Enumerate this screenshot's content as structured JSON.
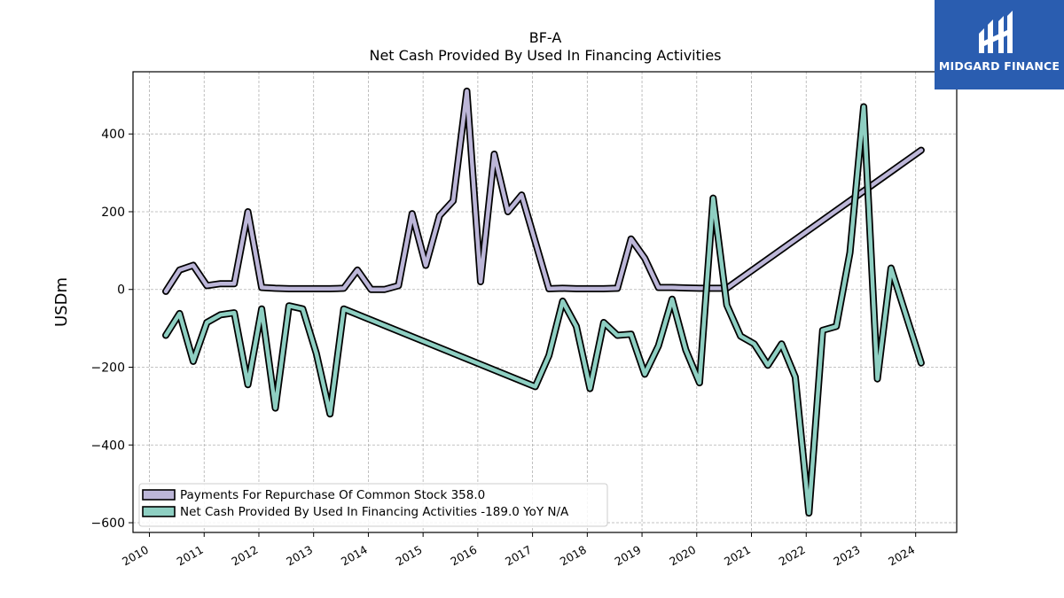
{
  "brand": {
    "name": "MIDGARD FINANCE",
    "color": "#2a5db0"
  },
  "chart_data": {
    "type": "line",
    "title": "BF-A",
    "subtitle": "Net Cash Provided By Used In Financing Activities",
    "xlabel": "",
    "ylabel": "USDm",
    "xlim": [
      2009.7,
      2024.75
    ],
    "ylim": [
      -625,
      560
    ],
    "yticks": [
      -600,
      -400,
      -200,
      0,
      200,
      400
    ],
    "ytick_labels": [
      "−600",
      "−400",
      "−200",
      "0",
      "200",
      "400"
    ],
    "xticks": [
      2010,
      2011,
      2012,
      2013,
      2014,
      2015,
      2016,
      2017,
      2018,
      2019,
      2020,
      2021,
      2022,
      2023,
      2024
    ],
    "xtick_labels": [
      "2010",
      "2011",
      "2012",
      "2013",
      "2014",
      "2015",
      "2016",
      "2017",
      "2018",
      "2019",
      "2020",
      "2021",
      "2022",
      "2023",
      "2024"
    ],
    "grid": true,
    "legend_position": "lower-left",
    "series": [
      {
        "name": "Payments For Repurchase Of Common Stock",
        "legend_label": "Payments For Repurchase Of Common Stock  358.0",
        "color": "#bcb6d8",
        "x": [
          2010.3,
          2010.55,
          2010.8,
          2011.05,
          2011.3,
          2011.55,
          2011.8,
          2012.05,
          2012.3,
          2012.55,
          2012.8,
          2013.05,
          2013.3,
          2013.55,
          2013.8,
          2014.05,
          2014.3,
          2014.55,
          2014.8,
          2015.05,
          2015.3,
          2015.55,
          2015.8,
          2016.05,
          2016.3,
          2016.55,
          2016.8,
          2017.3,
          2017.55,
          2017.8,
          2018.05,
          2018.3,
          2018.55,
          2018.8,
          2019.05,
          2019.3,
          2019.55,
          2019.8,
          2020.05,
          2020.3,
          2020.55,
          2024.1
        ],
        "y": [
          -5,
          50,
          62,
          10,
          15,
          15,
          200,
          5,
          3,
          2,
          2,
          2,
          2,
          3,
          50,
          0,
          0,
          10,
          195,
          62,
          190,
          228,
          510,
          20,
          348,
          200,
          243,
          2,
          3,
          2,
          2,
          2,
          3,
          130,
          80,
          5,
          5,
          4,
          3,
          3,
          3,
          358
        ]
      },
      {
        "name": "Net Cash Provided By Used In Financing Activities",
        "legend_label": "Net Cash Provided By Used In Financing Activities  -189.0 YoY N/A",
        "color": "#8ecfc2",
        "x": [
          2010.3,
          2010.55,
          2010.8,
          2011.05,
          2011.3,
          2011.55,
          2011.8,
          2012.05,
          2012.3,
          2012.55,
          2012.8,
          2013.05,
          2013.3,
          2013.55,
          2017.05,
          2017.3,
          2017.55,
          2017.8,
          2018.05,
          2018.3,
          2018.55,
          2018.8,
          2019.05,
          2019.3,
          2019.55,
          2019.8,
          2020.05,
          2020.3,
          2020.55,
          2020.8,
          2021.05,
          2021.3,
          2021.55,
          2021.8,
          2022.05,
          2022.3,
          2022.55,
          2022.8,
          2023.05,
          2023.3,
          2023.55,
          2024.1
        ],
        "y": [
          -118,
          -62,
          -185,
          -85,
          -65,
          -60,
          -245,
          -50,
          -305,
          -42,
          -50,
          -165,
          -320,
          -50,
          -250,
          -170,
          -30,
          -95,
          -255,
          -85,
          -118,
          -115,
          -218,
          -145,
          -25,
          -155,
          -240,
          235,
          -40,
          -120,
          -140,
          -195,
          -140,
          -225,
          -575,
          -105,
          -95,
          95,
          470,
          -230,
          55,
          -189
        ]
      }
    ]
  }
}
